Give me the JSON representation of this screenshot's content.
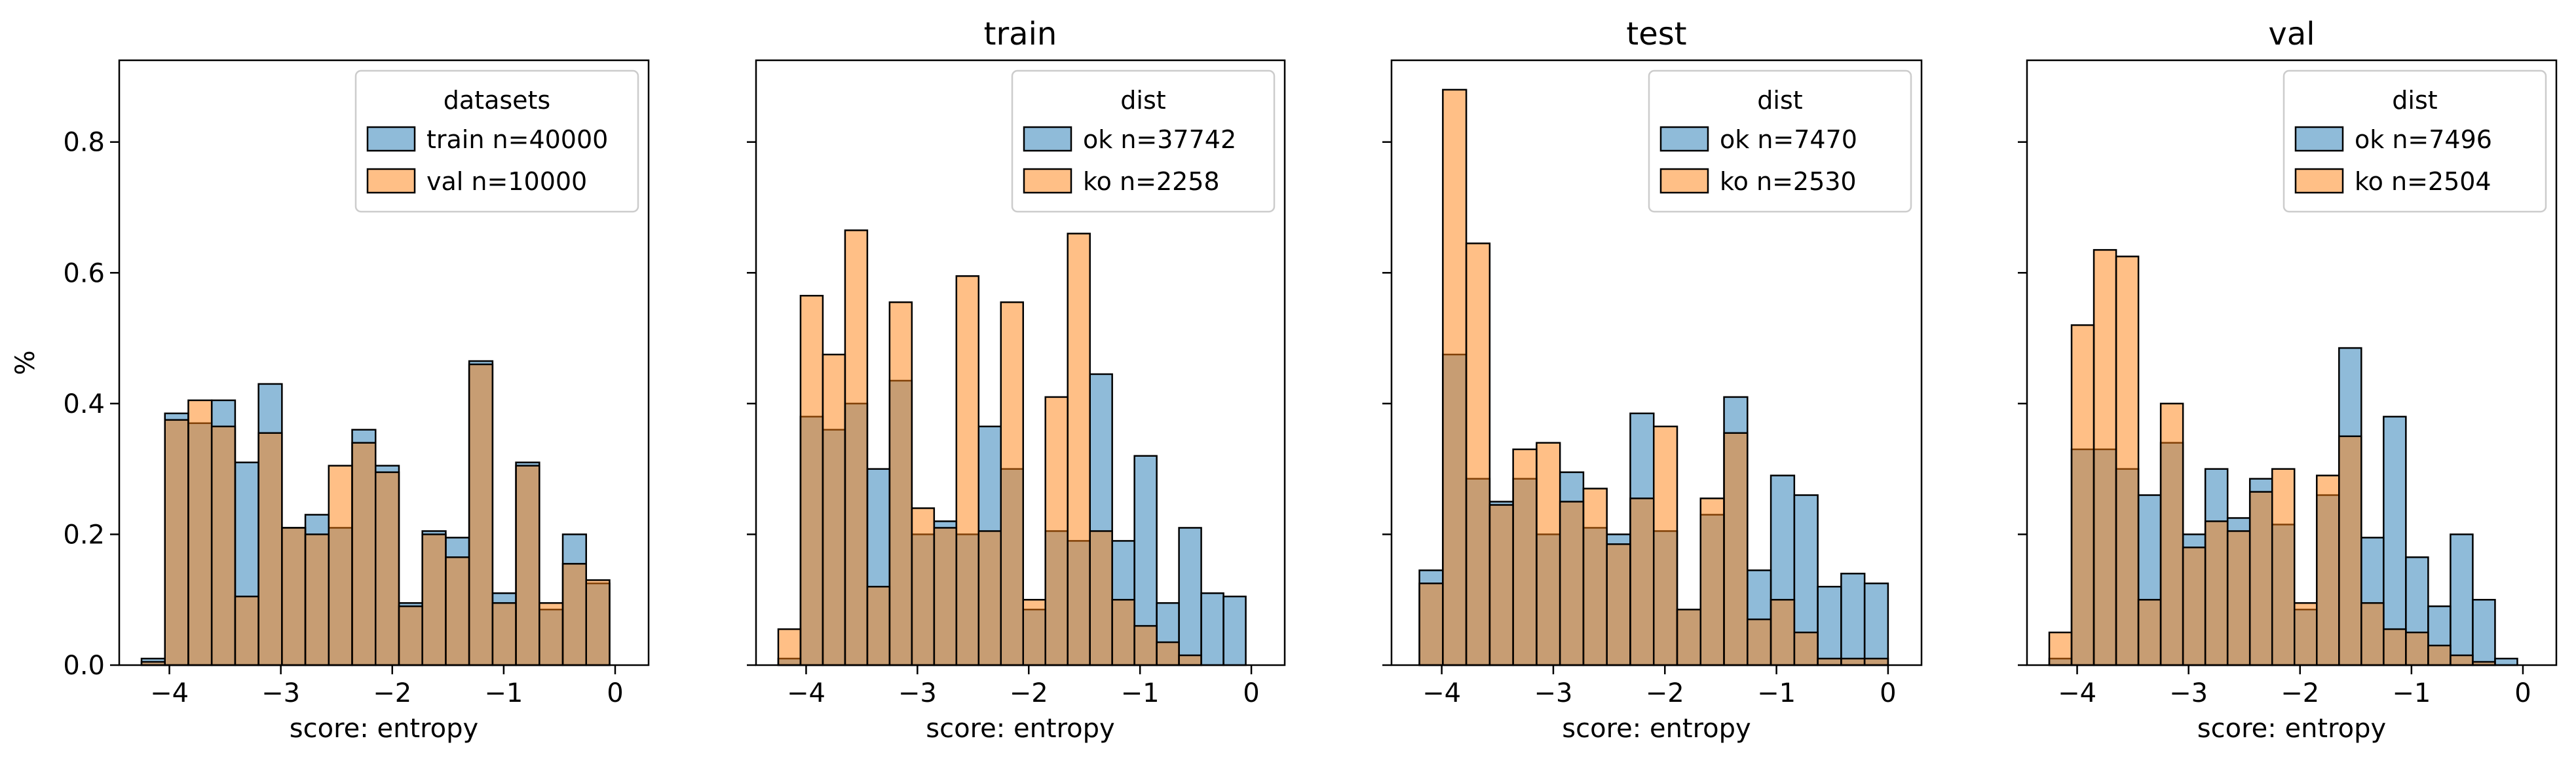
{
  "chart_data": [
    {
      "type": "histogram",
      "title": "",
      "xlabel": "score: entropy",
      "ylabel": "%",
      "xlim": [
        -4.45,
        0.3
      ],
      "ylim": [
        0,
        0.925
      ],
      "xticks": [
        -4,
        -3,
        -2,
        -1,
        0
      ],
      "yticks": [
        0.0,
        0.2,
        0.4,
        0.6,
        0.8
      ],
      "xticklabels": [
        "−4",
        "−3",
        "−2",
        "−1",
        "0"
      ],
      "yticklabels": [
        "0.0",
        "0.2",
        "0.4",
        "0.6",
        "0.8"
      ],
      "show_yticklabels": true,
      "legend": {
        "title": "datasets",
        "placement": "top-right"
      },
      "bin_edges": [
        -4.25,
        -4.04,
        -3.83,
        -3.62,
        -3.41,
        -3.2,
        -2.99,
        -2.78,
        -2.57,
        -2.36,
        -2.15,
        -1.94,
        -1.73,
        -1.52,
        -1.31,
        -1.1,
        -0.89,
        -0.68,
        -0.47,
        -0.26,
        -0.05
      ],
      "series": [
        {
          "name": "train n=40000",
          "color": "#1f77b4",
          "values": [
            0.01,
            0.385,
            0.37,
            0.405,
            0.31,
            0.43,
            0.21,
            0.23,
            0.21,
            0.36,
            0.305,
            0.095,
            0.205,
            0.195,
            0.465,
            0.11,
            0.31,
            0.085,
            0.2,
            0.125,
            0.1
          ]
        },
        {
          "name": "val n=10000",
          "color": "#ff7f0e",
          "values": [
            0.005,
            0.375,
            0.405,
            0.365,
            0.105,
            0.355,
            0.21,
            0.2,
            0.305,
            0.34,
            0.295,
            0.09,
            0.2,
            0.165,
            0.46,
            0.095,
            0.305,
            0.095,
            0.155,
            0.13,
            0.1
          ]
        }
      ]
    },
    {
      "type": "histogram",
      "title": "train",
      "xlabel": "score: entropy",
      "ylabel": "",
      "xlim": [
        -4.45,
        0.3
      ],
      "ylim": [
        0,
        0.925
      ],
      "xticks": [
        -4,
        -3,
        -2,
        -1,
        0
      ],
      "yticks": [
        0.0,
        0.2,
        0.4,
        0.6,
        0.8
      ],
      "xticklabels": [
        "−4",
        "−3",
        "−2",
        "−1",
        "0"
      ],
      "yticklabels": [],
      "show_yticklabels": false,
      "legend": {
        "title": "dist",
        "placement": "top-right"
      },
      "bin_edges": [
        -4.25,
        -4.05,
        -3.85,
        -3.65,
        -3.45,
        -3.25,
        -3.05,
        -2.85,
        -2.65,
        -2.45,
        -2.25,
        -2.05,
        -1.85,
        -1.65,
        -1.45,
        -1.25,
        -1.05,
        -0.85,
        -0.65,
        -0.45,
        -0.25,
        -0.05
      ],
      "series": [
        {
          "name": "ok n=37742",
          "color": "#1f77b4",
          "values": [
            0.01,
            0.38,
            0.36,
            0.4,
            0.3,
            0.435,
            0.2,
            0.22,
            0.2,
            0.365,
            0.3,
            0.085,
            0.205,
            0.19,
            0.445,
            0.19,
            0.32,
            0.095,
            0.21,
            0.11,
            0.105
          ]
        },
        {
          "name": "ko n=2258",
          "color": "#ff7f0e",
          "values": [
            0.055,
            0.565,
            0.475,
            0.665,
            0.12,
            0.555,
            0.24,
            0.21,
            0.595,
            0.205,
            0.555,
            0.1,
            0.41,
            0.66,
            0.205,
            0.1,
            0.06,
            0.035,
            0.015,
            0.0,
            0.0
          ]
        }
      ]
    },
    {
      "type": "histogram",
      "title": "test",
      "xlabel": "score: entropy",
      "ylabel": "",
      "xlim": [
        -4.45,
        0.3
      ],
      "ylim": [
        0,
        0.925
      ],
      "xticks": [
        -4,
        -3,
        -2,
        -1,
        0
      ],
      "yticks": [
        0.0,
        0.2,
        0.4,
        0.6,
        0.8
      ],
      "xticklabels": [
        "−4",
        "−3",
        "−2",
        "−1",
        "0"
      ],
      "yticklabels": [],
      "show_yticklabels": false,
      "legend": {
        "title": "dist",
        "placement": "top-right"
      },
      "bin_edges": [
        -4.2,
        -3.99,
        -3.78,
        -3.57,
        -3.36,
        -3.15,
        -2.94,
        -2.73,
        -2.52,
        -2.31,
        -2.1,
        -1.89,
        -1.68,
        -1.47,
        -1.26,
        -1.05,
        -0.84,
        -0.63,
        -0.42,
        -0.21,
        0.0
      ],
      "series": [
        {
          "name": "ok n=7470",
          "color": "#1f77b4",
          "values": [
            0.145,
            0.475,
            0.285,
            0.25,
            0.285,
            0.2,
            0.295,
            0.21,
            0.2,
            0.385,
            0.205,
            0.085,
            0.23,
            0.41,
            0.145,
            0.29,
            0.26,
            0.12,
            0.14,
            0.125
          ]
        },
        {
          "name": "ko n=2530",
          "color": "#ff7f0e",
          "values": [
            0.125,
            0.88,
            0.645,
            0.245,
            0.33,
            0.34,
            0.25,
            0.27,
            0.185,
            0.255,
            0.365,
            0.085,
            0.255,
            0.355,
            0.07,
            0.1,
            0.05,
            0.01,
            0.01,
            0.01
          ]
        }
      ]
    },
    {
      "type": "histogram",
      "title": "val",
      "xlabel": "score: entropy",
      "ylabel": "",
      "xlim": [
        -4.45,
        0.3
      ],
      "ylim": [
        0,
        0.925
      ],
      "xticks": [
        -4,
        -3,
        -2,
        -1,
        0
      ],
      "yticks": [
        0.0,
        0.2,
        0.4,
        0.6,
        0.8
      ],
      "xticklabels": [
        "−4",
        "−3",
        "−2",
        "−1",
        "0"
      ],
      "yticklabels": [],
      "show_yticklabels": false,
      "legend": {
        "title": "dist",
        "placement": "top-right"
      },
      "bin_edges": [
        -4.25,
        -4.05,
        -3.85,
        -3.65,
        -3.45,
        -3.25,
        -3.05,
        -2.85,
        -2.65,
        -2.45,
        -2.25,
        -2.05,
        -1.85,
        -1.65,
        -1.45,
        -1.25,
        -1.05,
        -0.85,
        -0.65,
        -0.45,
        -0.25,
        -0.05
      ],
      "series": [
        {
          "name": "ok n=7496",
          "color": "#1f77b4",
          "values": [
            0.01,
            0.33,
            0.33,
            0.3,
            0.26,
            0.34,
            0.2,
            0.3,
            0.225,
            0.285,
            0.215,
            0.085,
            0.26,
            0.485,
            0.195,
            0.38,
            0.165,
            0.09,
            0.2,
            0.1,
            0.01
          ]
        },
        {
          "name": "ko n=2504",
          "color": "#ff7f0e",
          "values": [
            0.05,
            0.52,
            0.635,
            0.625,
            0.1,
            0.4,
            0.18,
            0.22,
            0.205,
            0.265,
            0.3,
            0.095,
            0.29,
            0.35,
            0.095,
            0.055,
            0.05,
            0.03,
            0.015,
            0.005,
            0.0
          ]
        }
      ]
    }
  ]
}
